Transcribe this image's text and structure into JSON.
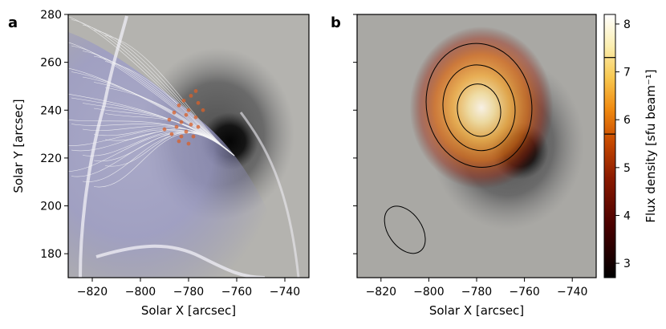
{
  "chart_data": [
    {
      "panel_label": "a",
      "type": "image",
      "xlabel": "Solar X [arcsec]",
      "ylabel": "Solar Y [arcsec]",
      "xlim": [
        -830,
        -730
      ],
      "ylim": [
        170,
        280
      ],
      "xticks": [
        -820,
        -800,
        -780,
        -760,
        -740
      ],
      "xtick_labels": [
        "−820",
        "−800",
        "−780",
        "−760",
        "−740"
      ],
      "yticks": [
        180,
        200,
        220,
        240,
        260,
        280
      ],
      "ytick_labels": [
        "180",
        "200",
        "220",
        "240",
        "260",
        "280"
      ],
      "sunspot_umbra_center": [
        -763,
        227
      ],
      "overlays": [
        "magnetic field lines",
        "source positions (orange dots)",
        "purple shaded extrapolation"
      ]
    },
    {
      "panel_label": "b",
      "type": "heatmap",
      "xlabel": "Solar X [arcsec]",
      "ylabel": "",
      "xlim": [
        -830,
        -730
      ],
      "ylim": [
        170,
        280
      ],
      "xticks": [
        -820,
        -800,
        -780,
        -760,
        -740
      ],
      "xtick_labels": [
        "−820",
        "−800",
        "−780",
        "−760",
        "−740"
      ],
      "yticks": [
        180,
        200,
        220,
        240,
        260,
        280
      ],
      "ytick_labels": [
        "",
        "",
        "",
        "",
        "",
        ""
      ],
      "source_center": [
        -778,
        241
      ],
      "contours": [
        {
          "center": [
            -779,
            242
          ],
          "rx": 22,
          "ry": 26,
          "angle_deg": -10
        },
        {
          "center": [
            -779,
            241
          ],
          "rx": 15,
          "ry": 18,
          "angle_deg": -10
        },
        {
          "center": [
            -779,
            240
          ],
          "rx": 9,
          "ry": 11,
          "angle_deg": -10
        }
      ],
      "beam": {
        "center": [
          -810,
          190
        ],
        "rx": 11,
        "ry": 7,
        "angle_deg": -55
      }
    }
  ],
  "colorbar": {
    "label": "Flux density [sfu beam⁻¹]",
    "range": [
      2.7,
      8.2
    ],
    "ticks": [
      3,
      4,
      5,
      6,
      7,
      8
    ],
    "tick_labels": [
      "3",
      "4",
      "5",
      "6",
      "7",
      "8"
    ],
    "contour_levels": [
      5.7,
      7.3
    ],
    "colormap": "afmhot",
    "colors": [
      "#000000",
      "#4a0000",
      "#8b1a00",
      "#c84a00",
      "#f08a10",
      "#f8c850",
      "#fbeeb0",
      "#ffffff"
    ]
  }
}
